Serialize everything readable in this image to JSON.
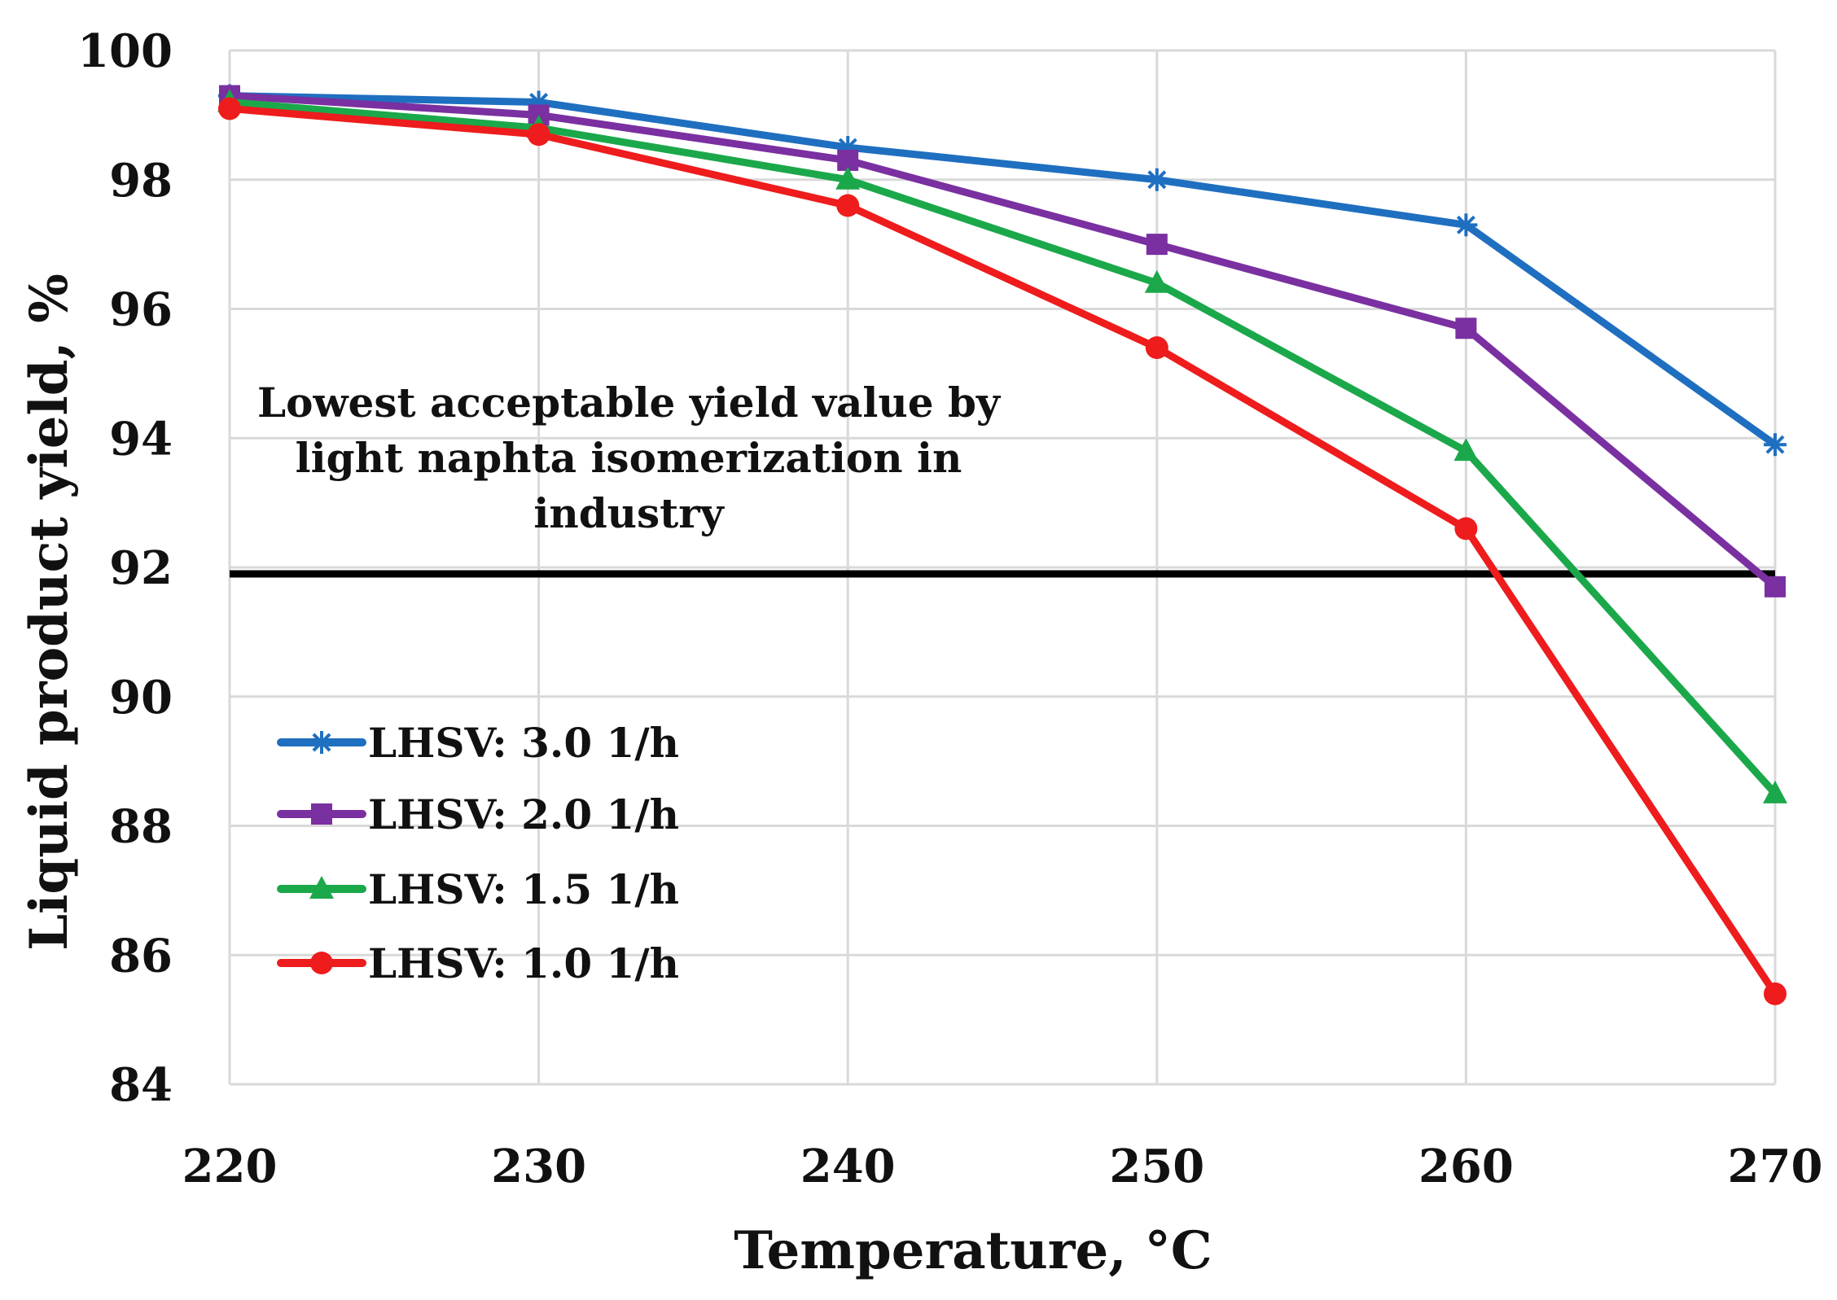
{
  "chart_data": {
    "type": "line",
    "title": "",
    "xlabel": "Temperature, °C",
    "ylabel": "Liquid product  yield, %",
    "x": [
      220,
      230,
      240,
      250,
      260,
      270
    ],
    "xlim": [
      220,
      270
    ],
    "xticks": [
      220,
      230,
      240,
      250,
      260,
      270
    ],
    "ylim": [
      84,
      100
    ],
    "yticks": [
      84,
      86,
      88,
      90,
      92,
      94,
      96,
      98,
      100
    ],
    "grid": true,
    "legend_position": "left",
    "series": [
      {
        "name": "LHSV: 3.0 1/h",
        "color": "#1f6fc0",
        "marker": "star",
        "values": [
          99.3,
          99.2,
          98.5,
          98.0,
          97.3,
          93.9
        ]
      },
      {
        "name": "LHSV: 2.0 1/h",
        "color": "#7a30a0",
        "marker": "square",
        "values": [
          99.3,
          99.0,
          98.3,
          97.0,
          95.7,
          91.7
        ]
      },
      {
        "name": "LHSV: 1.5 1/h",
        "color": "#1ba84a",
        "marker": "triangle",
        "values": [
          99.2,
          98.8,
          98.0,
          96.4,
          93.8,
          88.5
        ]
      },
      {
        "name": "LHSV: 1.0 1/h",
        "color": "#ee1c1c",
        "marker": "circle",
        "values": [
          99.1,
          98.7,
          97.6,
          95.4,
          92.6,
          85.4
        ]
      }
    ],
    "reference_line": {
      "value": 91.9,
      "color": "#000000",
      "label_lines": [
        "Lowest acceptable yield value by",
        "light naphta isomerization in",
        "industry"
      ]
    }
  }
}
